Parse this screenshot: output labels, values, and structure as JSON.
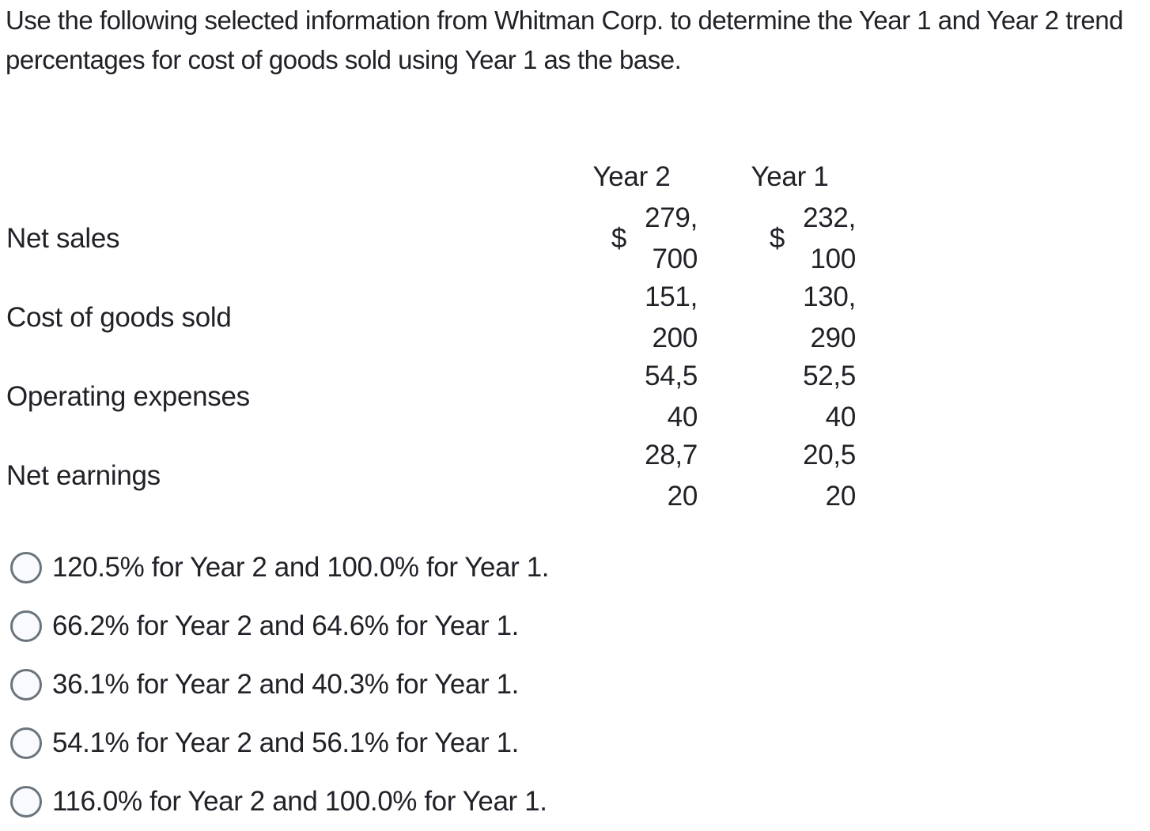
{
  "question": "Use the following selected information from Whitman Corp. to determine the Year 1 and Year 2 trend percentages for cost of goods sold using Year 1 as the base.",
  "table": {
    "col_headers": [
      "Year 2",
      "Year 1"
    ],
    "rows": [
      {
        "label": "Net sales",
        "y2": {
          "currency": "$",
          "line1": "279,",
          "line2": "700",
          "value": "279,700"
        },
        "y1": {
          "currency": "$",
          "line1": "232,",
          "line2": "100",
          "value": "232,100"
        }
      },
      {
        "label": "Cost of goods sold",
        "y2": {
          "currency": "",
          "line1": "151,",
          "line2": "200",
          "value": "151,200"
        },
        "y1": {
          "currency": "",
          "line1": "130,",
          "line2": "290",
          "value": "130,290"
        }
      },
      {
        "label": "Operating expenses",
        "y2": {
          "currency": "",
          "line1": "54,5",
          "line2": "40",
          "value": "54,540"
        },
        "y1": {
          "currency": "",
          "line1": "52,5",
          "line2": "40",
          "value": "52,540"
        }
      },
      {
        "label": "Net earnings",
        "y2": {
          "currency": "",
          "line1": "28,7",
          "line2": "20",
          "value": "28,720"
        },
        "y1": {
          "currency": "",
          "line1": "20,5",
          "line2": "20",
          "value": "20,520"
        }
      }
    ]
  },
  "options": [
    {
      "label": "120.5% for Year 2 and 100.0% for Year 1.",
      "selected": false
    },
    {
      "label": "66.2% for Year 2 and 64.6% for Year 1.",
      "selected": false
    },
    {
      "label": "36.1% for Year 2 and 40.3% for Year 1.",
      "selected": false
    },
    {
      "label": "54.1% for Year 2 and 56.1% for Year 1.",
      "selected": false
    },
    {
      "label": "116.0% for Year 2 and 100.0% for Year 1.",
      "selected": false
    }
  ],
  "colors": {
    "text": "#202228",
    "radio_border": "#6b747c",
    "radio_fill": "#f8fafd",
    "background": "#ffffff"
  }
}
